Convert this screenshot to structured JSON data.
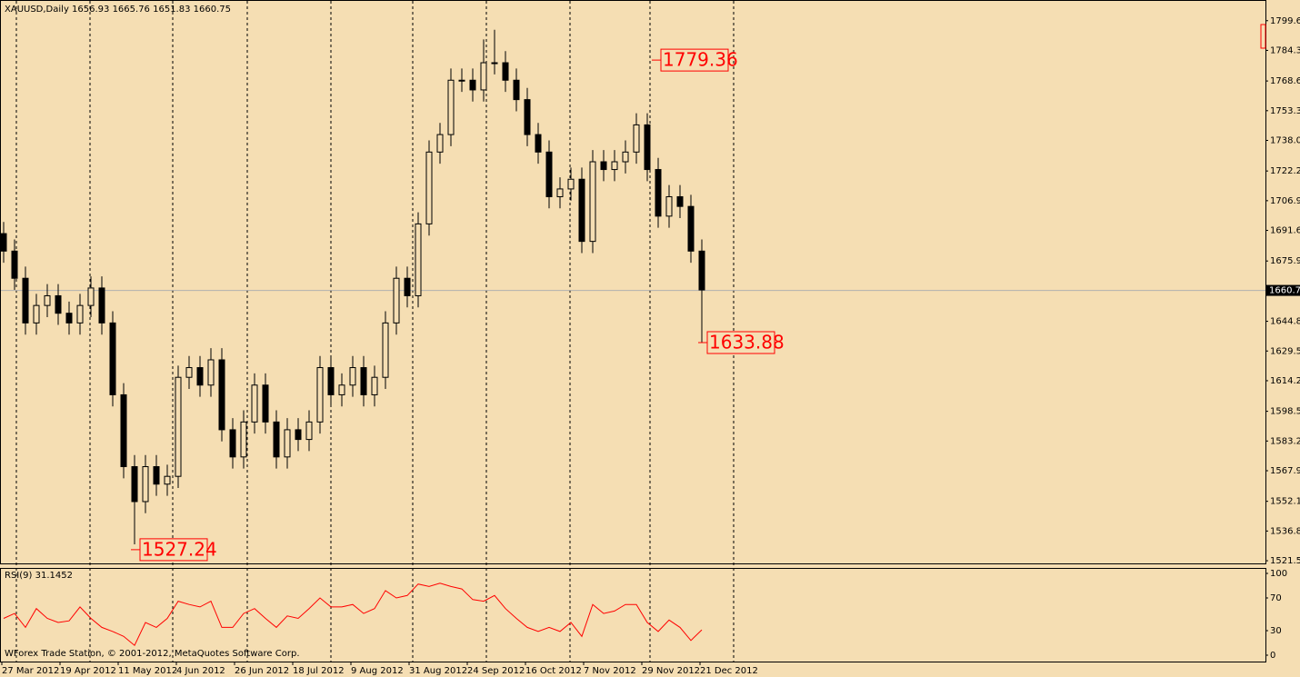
{
  "footer": "WForex Trade Station, © 2001-2012, MetaQuotes Software Corp.",
  "chart_data": [
    {
      "type": "candlestick",
      "title": "XAUUSD,Daily  1656.93 1665.76 1651.83 1660.75",
      "xtick_labels": [
        "27 Mar 2012",
        "19 Apr 2012",
        "11 May 2012",
        "4 Jun 2012",
        "26 Jun 2012",
        "18 Jul 2012",
        "9 Aug 2012",
        "31 Aug 2012",
        "24 Sep 2012",
        "16 Oct 2012",
        "7 Nov 2012",
        "29 Nov 2012",
        "21 Dec 2012"
      ],
      "open": [
        1690,
        1681,
        1667,
        1644,
        1653,
        1658,
        1649,
        1644,
        1653,
        1662,
        1644,
        1607,
        1570,
        1552,
        1570,
        1561,
        1565,
        1616,
        1621,
        1612,
        1625,
        1589,
        1575,
        1593,
        1612,
        1593,
        1575,
        1589,
        1584,
        1593,
        1621,
        1607,
        1612,
        1621,
        1607,
        1616,
        1644,
        1667,
        1658,
        1695,
        1732,
        1741,
        1769,
        1769,
        1764,
        1778,
        1778,
        1769,
        1759,
        1741,
        1732,
        1709,
        1713,
        1718,
        1686,
        1727,
        1723,
        1727,
        1732,
        1746,
        1723,
        1699,
        1709,
        1704,
        1681
      ],
      "high": [
        1696,
        1687,
        1673,
        1659,
        1664,
        1664,
        1655,
        1659,
        1668,
        1668,
        1650,
        1613,
        1576,
        1576,
        1576,
        1571,
        1622,
        1627,
        1627,
        1631,
        1631,
        1595,
        1599,
        1618,
        1618,
        1599,
        1595,
        1595,
        1599,
        1627,
        1627,
        1618,
        1627,
        1627,
        1622,
        1650,
        1673,
        1673,
        1701,
        1738,
        1747,
        1775,
        1775,
        1775,
        1790,
        1795,
        1784,
        1775,
        1765,
        1747,
        1738,
        1719,
        1724,
        1724,
        1733,
        1733,
        1733,
        1738,
        1752,
        1752,
        1729,
        1715,
        1715,
        1710,
        1687
      ],
      "low": [
        1675,
        1661,
        1638,
        1638,
        1647,
        1643,
        1638,
        1638,
        1647,
        1638,
        1601,
        1564,
        1530,
        1546,
        1555,
        1555,
        1559,
        1610,
        1606,
        1606,
        1583,
        1569,
        1569,
        1587,
        1587,
        1569,
        1569,
        1578,
        1578,
        1587,
        1601,
        1601,
        1606,
        1601,
        1601,
        1610,
        1638,
        1652,
        1652,
        1689,
        1726,
        1735,
        1763,
        1758,
        1758,
        1772,
        1763,
        1753,
        1735,
        1726,
        1703,
        1703,
        1707,
        1680,
        1680,
        1717,
        1717,
        1721,
        1726,
        1717,
        1693,
        1693,
        1698,
        1675,
        1634
      ],
      "close": [
        1681,
        1667,
        1644,
        1653,
        1658,
        1649,
        1644,
        1653,
        1662,
        1644,
        1607,
        1570,
        1552,
        1570,
        1561,
        1565,
        1616,
        1621,
        1612,
        1625,
        1589,
        1575,
        1593,
        1612,
        1593,
        1575,
        1589,
        1584,
        1593,
        1621,
        1607,
        1612,
        1621,
        1607,
        1616,
        1644,
        1667,
        1658,
        1695,
        1732,
        1741,
        1769,
        1769,
        1764,
        1778,
        1778,
        1769,
        1759,
        1741,
        1732,
        1709,
        1713,
        1718,
        1686,
        1727,
        1723,
        1727,
        1732,
        1746,
        1723,
        1699,
        1709,
        1704,
        1681,
        1661
      ],
      "up_color": "#f5deb3",
      "down_color": "#000000",
      "ylim": [
        1519.7,
        1810.3
      ],
      "yticks": [
        1799.65,
        1784.35,
        {
          "value": 1768.6,
          "label": "1768.60"
        },
        {
          "value": 1753.3,
          "label": "1753.30"
        },
        {
          "value": 1738,
          "label": "1738.00"
        },
        1722.25,
        1706.95,
        1691.65,
        {
          "value": 1675.9,
          "label": "1675.90"
        },
        1644.85,
        1629.55,
        1614.25,
        {
          "value": 1598.5,
          "label": "1598.50"
        },
        {
          "value": 1583.2,
          "label": "1583.20"
        },
        {
          "value": 1567.9,
          "label": "1567.90"
        },
        1552.15,
        1536.85,
        1521.55
      ],
      "current_price": 1660.75,
      "annotations": [
        1779.36,
        1633.88,
        1527.24
      ],
      "annotation_color": "#ff0000"
    },
    {
      "type": "line",
      "title": "RSI(9) 31.1452",
      "values": [
        45,
        51,
        34,
        57,
        45,
        40,
        42,
        59,
        45,
        34,
        29,
        23,
        12,
        40,
        34,
        45,
        66,
        62,
        59,
        66,
        34,
        34,
        51,
        57,
        45,
        34,
        48,
        45,
        57,
        70,
        59,
        59,
        62,
        51,
        57,
        79,
        70,
        73,
        87,
        84,
        88,
        84,
        81,
        68,
        66,
        73,
        57,
        45,
        34,
        29,
        34,
        29,
        40,
        23,
        62,
        51,
        54,
        62,
        62,
        40,
        29,
        43,
        34,
        18,
        31
      ],
      "color": "#ff0000",
      "ylim": [
        0,
        100
      ],
      "yticks": [
        100,
        70,
        30,
        0
      ]
    }
  ]
}
